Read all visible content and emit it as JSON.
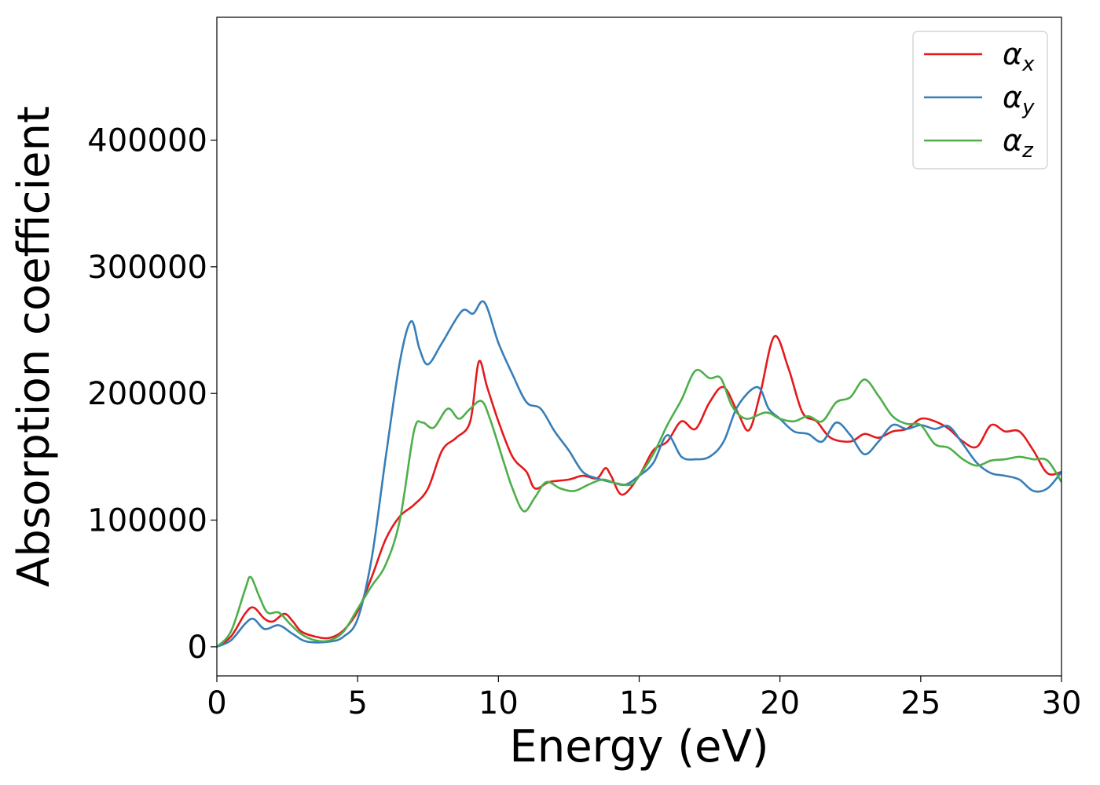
{
  "chart_data": {
    "type": "line",
    "title": "",
    "xlabel": "Energy (eV)",
    "ylabel": "Absorption coefficient",
    "xlim": [
      0,
      30
    ],
    "ylim": [
      -23000,
      497000
    ],
    "xticks": [
      0,
      5,
      10,
      15,
      20,
      25,
      30
    ],
    "yticks": [
      0,
      100000,
      200000,
      300000,
      400000
    ],
    "grid": false,
    "legend_position": "top-right",
    "series": [
      {
        "name": "α_x",
        "symbol": "α",
        "subscript": "x",
        "color": "#e41a1c",
        "points": [
          [
            0,
            0
          ],
          [
            0.5,
            8000
          ],
          [
            1,
            26000
          ],
          [
            1.3,
            31000
          ],
          [
            1.7,
            22000
          ],
          [
            2,
            20000
          ],
          [
            2.4,
            26000
          ],
          [
            2.7,
            20000
          ],
          [
            3,
            12000
          ],
          [
            3.5,
            8000
          ],
          [
            4,
            7000
          ],
          [
            4.5,
            13000
          ],
          [
            5,
            28000
          ],
          [
            5.5,
            55000
          ],
          [
            6,
            85000
          ],
          [
            6.5,
            103000
          ],
          [
            7,
            112000
          ],
          [
            7.5,
            125000
          ],
          [
            8,
            155000
          ],
          [
            8.5,
            165000
          ],
          [
            9,
            178000
          ],
          [
            9.3,
            225000
          ],
          [
            9.6,
            205000
          ],
          [
            10,
            178000
          ],
          [
            10.5,
            150000
          ],
          [
            11,
            138000
          ],
          [
            11.3,
            125000
          ],
          [
            11.8,
            130000
          ],
          [
            12.5,
            132000
          ],
          [
            13,
            135000
          ],
          [
            13.5,
            133000
          ],
          [
            13.8,
            141000
          ],
          [
            14,
            135000
          ],
          [
            14.4,
            120000
          ],
          [
            15,
            135000
          ],
          [
            15.5,
            155000
          ],
          [
            16,
            162000
          ],
          [
            16.5,
            178000
          ],
          [
            17,
            172000
          ],
          [
            17.5,
            193000
          ],
          [
            18,
            205000
          ],
          [
            18.5,
            185000
          ],
          [
            18.9,
            171000
          ],
          [
            19.3,
            200000
          ],
          [
            19.8,
            245000
          ],
          [
            20.3,
            220000
          ],
          [
            20.8,
            185000
          ],
          [
            21.3,
            178000
          ],
          [
            21.8,
            165000
          ],
          [
            22.5,
            162000
          ],
          [
            23,
            168000
          ],
          [
            23.5,
            165000
          ],
          [
            24,
            170000
          ],
          [
            24.5,
            172000
          ],
          [
            25,
            180000
          ],
          [
            25.5,
            178000
          ],
          [
            26,
            172000
          ],
          [
            26.5,
            162000
          ],
          [
            27,
            158000
          ],
          [
            27.5,
            175000
          ],
          [
            28,
            170000
          ],
          [
            28.5,
            170000
          ],
          [
            29,
            155000
          ],
          [
            29.5,
            137000
          ],
          [
            30,
            138000
          ]
        ]
      },
      {
        "name": "α_y",
        "symbol": "α",
        "subscript": "y",
        "color": "#377eb8",
        "points": [
          [
            0,
            0
          ],
          [
            0.5,
            5000
          ],
          [
            1,
            18000
          ],
          [
            1.3,
            22000
          ],
          [
            1.7,
            14000
          ],
          [
            2.2,
            17000
          ],
          [
            2.7,
            10000
          ],
          [
            3.2,
            4000
          ],
          [
            4,
            4000
          ],
          [
            4.5,
            8000
          ],
          [
            5,
            22000
          ],
          [
            5.5,
            70000
          ],
          [
            6,
            150000
          ],
          [
            6.5,
            225000
          ],
          [
            6.9,
            257000
          ],
          [
            7.2,
            235000
          ],
          [
            7.5,
            223000
          ],
          [
            8,
            240000
          ],
          [
            8.7,
            265000
          ],
          [
            9.1,
            263000
          ],
          [
            9.5,
            272000
          ],
          [
            10,
            240000
          ],
          [
            10.5,
            215000
          ],
          [
            11,
            193000
          ],
          [
            11.5,
            188000
          ],
          [
            12,
            170000
          ],
          [
            12.5,
            155000
          ],
          [
            13,
            138000
          ],
          [
            13.5,
            133000
          ],
          [
            14,
            130000
          ],
          [
            14.5,
            128000
          ],
          [
            15,
            135000
          ],
          [
            15.5,
            145000
          ],
          [
            16,
            167000
          ],
          [
            16.5,
            150000
          ],
          [
            17,
            148000
          ],
          [
            17.5,
            150000
          ],
          [
            18,
            162000
          ],
          [
            18.5,
            190000
          ],
          [
            19.2,
            205000
          ],
          [
            19.6,
            188000
          ],
          [
            20,
            180000
          ],
          [
            20.5,
            170000
          ],
          [
            21,
            168000
          ],
          [
            21.5,
            162000
          ],
          [
            22,
            177000
          ],
          [
            22.5,
            167000
          ],
          [
            23,
            152000
          ],
          [
            23.5,
            162000
          ],
          [
            24,
            175000
          ],
          [
            24.5,
            172000
          ],
          [
            25,
            175000
          ],
          [
            25.5,
            172000
          ],
          [
            26,
            174000
          ],
          [
            26.5,
            160000
          ],
          [
            27,
            145000
          ],
          [
            27.5,
            137000
          ],
          [
            28,
            135000
          ],
          [
            28.5,
            132000
          ],
          [
            29,
            123000
          ],
          [
            29.5,
            125000
          ],
          [
            30,
            138000
          ]
        ]
      },
      {
        "name": "α_z",
        "symbol": "α",
        "subscript": "z",
        "color": "#4daf4a",
        "points": [
          [
            0,
            0
          ],
          [
            0.5,
            12000
          ],
          [
            1,
            45000
          ],
          [
            1.2,
            55000
          ],
          [
            1.5,
            40000
          ],
          [
            1.8,
            27000
          ],
          [
            2.2,
            27000
          ],
          [
            2.6,
            18000
          ],
          [
            3,
            10000
          ],
          [
            3.5,
            5000
          ],
          [
            4,
            5000
          ],
          [
            4.5,
            12000
          ],
          [
            5,
            30000
          ],
          [
            5.5,
            48000
          ],
          [
            6,
            65000
          ],
          [
            6.5,
            100000
          ],
          [
            7,
            170000
          ],
          [
            7.3,
            177000
          ],
          [
            7.7,
            173000
          ],
          [
            8.2,
            188000
          ],
          [
            8.6,
            180000
          ],
          [
            9,
            188000
          ],
          [
            9.4,
            194000
          ],
          [
            9.7,
            180000
          ],
          [
            10.2,
            145000
          ],
          [
            10.5,
            125000
          ],
          [
            10.9,
            107000
          ],
          [
            11.3,
            118000
          ],
          [
            11.7,
            130000
          ],
          [
            12.2,
            125000
          ],
          [
            12.7,
            123000
          ],
          [
            13.2,
            128000
          ],
          [
            13.7,
            132000
          ],
          [
            14.2,
            129000
          ],
          [
            14.7,
            128000
          ],
          [
            15,
            135000
          ],
          [
            15.5,
            152000
          ],
          [
            16,
            175000
          ],
          [
            16.5,
            195000
          ],
          [
            17,
            218000
          ],
          [
            17.5,
            212000
          ],
          [
            17.9,
            212000
          ],
          [
            18.3,
            190000
          ],
          [
            18.8,
            180000
          ],
          [
            19.5,
            185000
          ],
          [
            20,
            180000
          ],
          [
            20.5,
            178000
          ],
          [
            21,
            182000
          ],
          [
            21.5,
            178000
          ],
          [
            22,
            193000
          ],
          [
            22.5,
            197000
          ],
          [
            23,
            211000
          ],
          [
            23.5,
            198000
          ],
          [
            24,
            182000
          ],
          [
            24.5,
            176000
          ],
          [
            25,
            175000
          ],
          [
            25.5,
            160000
          ],
          [
            26,
            157000
          ],
          [
            26.5,
            148000
          ],
          [
            27,
            143000
          ],
          [
            27.5,
            147000
          ],
          [
            28,
            148000
          ],
          [
            28.5,
            150000
          ],
          [
            29,
            148000
          ],
          [
            29.5,
            147000
          ],
          [
            30,
            130000
          ]
        ]
      }
    ]
  }
}
